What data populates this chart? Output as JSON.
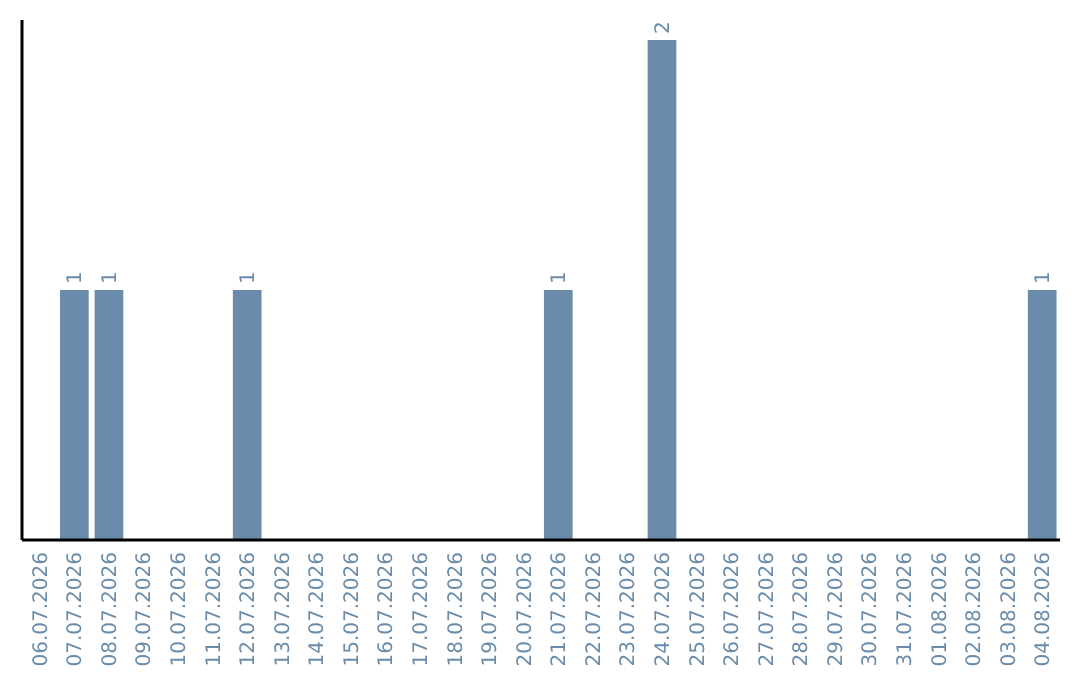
{
  "chart_data": {
    "type": "bar",
    "categories": [
      "06.07.2026",
      "07.07.2026",
      "08.07.2026",
      "09.07.2026",
      "10.07.2026",
      "11.07.2026",
      "12.07.2026",
      "13.07.2026",
      "14.07.2026",
      "15.07.2026",
      "16.07.2026",
      "17.07.2026",
      "18.07.2026",
      "19.07.2026",
      "20.07.2026",
      "21.07.2026",
      "22.07.2026",
      "23.07.2026",
      "24.07.2026",
      "25.07.2026",
      "26.07.2026",
      "27.07.2026",
      "28.07.2026",
      "29.07.2026",
      "30.07.2026",
      "31.07.2026",
      "01.08.2026",
      "02.08.2026",
      "03.08.2026",
      "04.08.2026"
    ],
    "values": [
      0,
      1,
      1,
      0,
      0,
      0,
      1,
      0,
      0,
      0,
      0,
      0,
      0,
      0,
      0,
      1,
      0,
      0,
      2,
      0,
      0,
      0,
      0,
      0,
      0,
      0,
      0,
      0,
      0,
      1
    ],
    "value_labels": [
      null,
      "1",
      "1",
      null,
      null,
      null,
      "1",
      null,
      null,
      null,
      null,
      null,
      null,
      null,
      null,
      "1",
      null,
      null,
      "2",
      null,
      null,
      null,
      null,
      null,
      null,
      null,
      null,
      null,
      null,
      "1"
    ],
    "color": "#6a8caa",
    "tick_labels": "x"
  }
}
